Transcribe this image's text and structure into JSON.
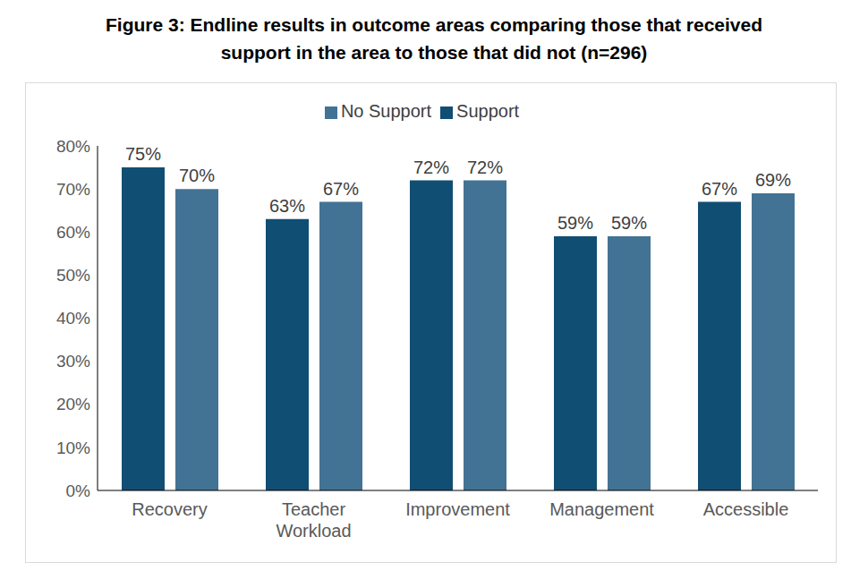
{
  "chart_data": {
    "type": "bar",
    "title": "Figure 3: Endline results in outcome areas comparing those that received support in the area to those that did not (n=296)",
    "categories": [
      "Recovery",
      "Teacher Workload",
      "Improvement",
      "Management",
      "Accessible"
    ],
    "series": [
      {
        "name": "Support",
        "color": "#114e73",
        "values": [
          75,
          63,
          72,
          59,
          67
        ],
        "value_labels": [
          "75%",
          "63%",
          "72%",
          "59%",
          "67%"
        ]
      },
      {
        "name": "No Support",
        "color": "#427394",
        "values": [
          70,
          67,
          72,
          59,
          69
        ],
        "value_labels": [
          "70%",
          "67%",
          "72%",
          "59%",
          "69%"
        ]
      }
    ],
    "ylim": [
      0,
      80
    ],
    "yticks": [
      {
        "value": 0,
        "label": "0%"
      },
      {
        "value": 10,
        "label": "10%"
      },
      {
        "value": 20,
        "label": "20%"
      },
      {
        "value": 30,
        "label": "30%"
      },
      {
        "value": 40,
        "label": "40%"
      },
      {
        "value": 50,
        "label": "50%"
      },
      {
        "value": 60,
        "label": "60%"
      },
      {
        "value": 70,
        "label": "70%"
      },
      {
        "value": 80,
        "label": "80%"
      }
    ],
    "grid": false,
    "legend": "top",
    "data_labels": true
  }
}
